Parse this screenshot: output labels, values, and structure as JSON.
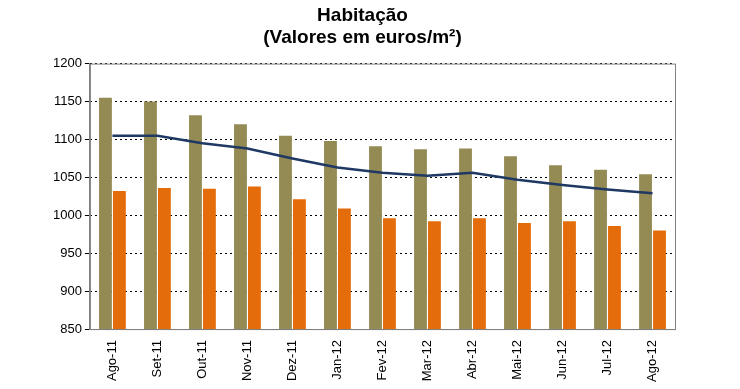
{
  "chart_data": {
    "type": "bar",
    "title": "Habitação",
    "subtitle": "(Valores em euros/m²)",
    "categories": [
      "Ago-11",
      "Set-11",
      "Out-11",
      "Nov-11",
      "Dez-11",
      "Jan-12",
      "Fev-12",
      "Mar-12",
      "Abr-12",
      "Mai-12",
      "Jun-12",
      "Jul-12",
      "Ago-12"
    ],
    "series": [
      {
        "type": "bar",
        "color": "#948a54",
        "values": [
          1155,
          1150,
          1132,
          1120,
          1105,
          1098,
          1091,
          1087,
          1088,
          1078,
          1066,
          1060,
          1054
        ]
      },
      {
        "type": "bar",
        "color": "#e46c0a",
        "values": [
          1032,
          1036,
          1035,
          1038,
          1021,
          1009,
          996,
          992,
          996,
          990,
          992,
          986,
          980
        ]
      },
      {
        "type": "line",
        "color": "#1f3864",
        "marker": "none",
        "line_style": "solid",
        "values": [
          1105,
          1105,
          1095,
          1088,
          1075,
          1063,
          1056,
          1052,
          1056,
          1047,
          1040,
          1034,
          1029
        ]
      }
    ],
    "ylim": [
      850,
      1200
    ],
    "yticks": [
      850,
      900,
      950,
      1000,
      1050,
      1100,
      1150,
      1200
    ],
    "grid": true
  }
}
